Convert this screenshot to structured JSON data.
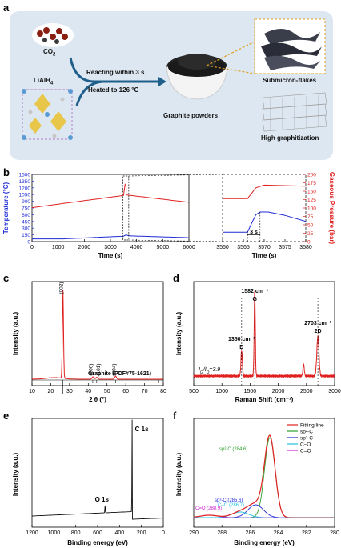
{
  "panel_a": {
    "letter": "a",
    "co2": "CO",
    "co2_sub": "2",
    "lialh4": "LiAlH",
    "lialh4_sub": "4",
    "reaction_top": "Reacting within 3 s",
    "reaction_bottom": "Heated to 126 °C",
    "product": "Graphite powders",
    "feature1": "Submicron-flakes",
    "feature2": "High  graphitization",
    "colors": {
      "bg": "#dde7f1",
      "arrow": "#1f5f8b",
      "dashed": "#e0a020"
    }
  },
  "panel_b": {
    "letter": "b",
    "ylabel_left": "Temperature (°C)",
    "ylabel_right": "Gaseous Pressure (bar)",
    "xlabel_left": "Time (s)",
    "xlabel_right": "Time (s)",
    "yticks_left": [
      "0",
      "150",
      "300",
      "450",
      "600",
      "750",
      "900",
      "1050",
      "1200",
      "1350",
      "1500"
    ],
    "xticks_left": [
      "0",
      "1000",
      "2000",
      "3000",
      "4000",
      "5000",
      "6000"
    ],
    "yticks_right": [
      "0",
      "25",
      "50",
      "75",
      "100",
      "125",
      "150",
      "175",
      "200"
    ],
    "xticks_zoom": [
      "3560",
      "3565",
      "3570",
      "3575",
      "3580"
    ],
    "annotation": "3 s",
    "colors": {
      "temperature": "#1f2bd6",
      "pressure": "#e0201f"
    }
  },
  "panel_c": {
    "letter": "c",
    "ylabel": "Intensity (a.u.)",
    "xlabel": "2 θ (°)",
    "xticks": [
      "10",
      "20",
      "30",
      "40",
      "50",
      "60",
      "70",
      "80"
    ],
    "peaks": [
      "(002)",
      "(100)",
      "(101)",
      "(004)"
    ],
    "reference": "Graphite (PDF#75-1621)"
  },
  "panel_d": {
    "letter": "d",
    "ylabel": "Intensity (a.u.)",
    "xlabel": "Raman Shift (cm⁻¹)",
    "xticks": [
      "500",
      "1000",
      "1500",
      "2000",
      "2500",
      "3000"
    ],
    "peak_g_value": "1582 cm⁻¹",
    "peak_g": "G",
    "peak_d_value": "1350 cm⁻¹",
    "peak_d": "D",
    "peak_2d_value": "2703 cm⁻¹",
    "peak_2d": "2D",
    "ratio": "I",
    "ratio_mid": "G",
    "ratio_sep": "/",
    "ratio_end": "D",
    "ratio_value": "=3.9"
  },
  "panel_e": {
    "letter": "e",
    "ylabel": "Intensity (a.u.)",
    "xlabel": "Binding energy (eV)",
    "xticks": [
      "1200",
      "1000",
      "800",
      "600",
      "400",
      "200",
      "0"
    ],
    "peak_c": "C 1s",
    "peak_o": "O 1s"
  },
  "panel_f": {
    "letter": "f",
    "ylabel": "Intensity (a.u.)",
    "xlabel": "Binding energy (eV)",
    "xticks": [
      "290",
      "288",
      "286",
      "284",
      "282",
      "280"
    ],
    "legend": [
      "Fitting line",
      "sp²-C",
      "sp³-C",
      "C–O",
      "C=O"
    ],
    "ann_sp2": "sp²-C (284.6)",
    "ann_sp3": "sp³-C (285.6)",
    "ann_co": "C–O (286.7)",
    "ann_c_o": "C=O (288.9)",
    "colors": {
      "fit": "#e0201f",
      "sp2": "#2ca02c",
      "sp3": "#1f2bd6",
      "co": "#22c0e0",
      "c_o": "#d020d0"
    }
  }
}
